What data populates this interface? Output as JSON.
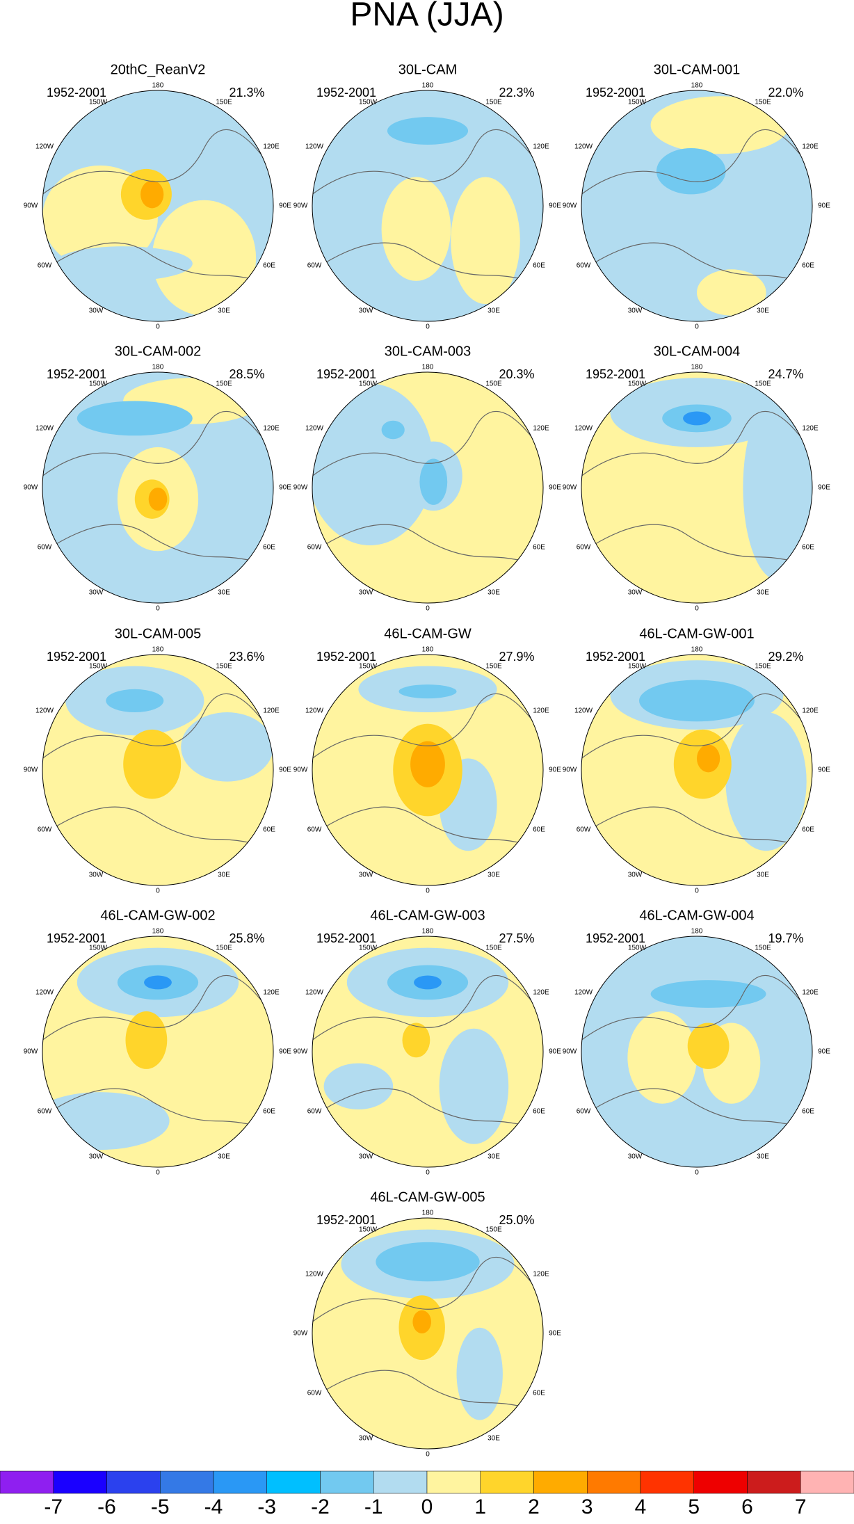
{
  "title": "PNA (JJA)",
  "panels": [
    {
      "title": "20thC_ReanV2",
      "period": "1952-2001",
      "percent": "21.3%"
    },
    {
      "title": "30L-CAM",
      "period": "1952-2001",
      "percent": "22.3%"
    },
    {
      "title": "30L-CAM-001",
      "period": "1952-2001",
      "percent": "22.0%"
    },
    {
      "title": "30L-CAM-002",
      "period": "1952-2001",
      "percent": "28.5%"
    },
    {
      "title": "30L-CAM-003",
      "period": "1952-2001",
      "percent": "20.3%"
    },
    {
      "title": "30L-CAM-004",
      "period": "1952-2001",
      "percent": "24.7%"
    },
    {
      "title": "30L-CAM-005",
      "period": "1952-2001",
      "percent": "23.6%"
    },
    {
      "title": "46L-CAM-GW",
      "period": "1952-2001",
      "percent": "27.9%"
    },
    {
      "title": "46L-CAM-GW-001",
      "period": "1952-2001",
      "percent": "29.2%"
    },
    {
      "title": "46L-CAM-GW-002",
      "period": "1952-2001",
      "percent": "25.8%"
    },
    {
      "title": "46L-CAM-GW-003",
      "period": "1952-2001",
      "percent": "27.5%"
    },
    {
      "title": "46L-CAM-GW-004",
      "period": "1952-2001",
      "percent": "19.7%"
    },
    {
      "title": "46L-CAM-GW-005",
      "period": "1952-2001",
      "percent": "25.0%"
    }
  ],
  "longitude_labels": [
    "180",
    "150W",
    "150E",
    "120W",
    "120E",
    "90W",
    "90E",
    "60W",
    "60E",
    "30W",
    "30E",
    "0"
  ],
  "colorbar": {
    "labels": [
      "-7",
      "-6",
      "-5",
      "-4",
      "-3",
      "-2",
      "-1",
      "0",
      "1",
      "2",
      "3",
      "4",
      "5",
      "6",
      "7"
    ],
    "colors": [
      "#8f1ff0",
      "#1a00ff",
      "#2b41ee",
      "#3479e6",
      "#2a98f5",
      "#00bfff",
      "#72c9f0",
      "#b2dcf0",
      "#fff49f",
      "#ffd52b",
      "#ffab00",
      "#ff7a00",
      "#ff3300",
      "#ee0000",
      "#cc1c1c",
      "#ffb3b3"
    ]
  }
}
